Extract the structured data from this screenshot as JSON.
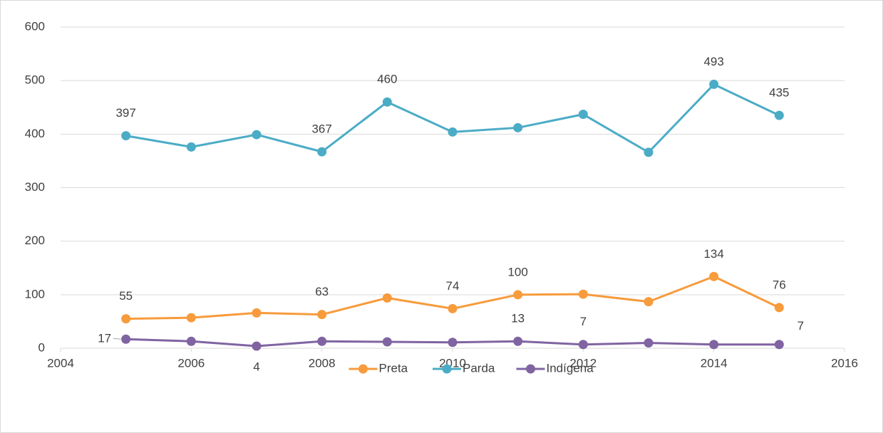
{
  "chart_data": {
    "type": "line",
    "x": [
      2005,
      2006,
      2007,
      2008,
      2009,
      2010,
      2011,
      2012,
      2013,
      2014,
      2015
    ],
    "series": [
      {
        "name": "Preta",
        "color": "#f79b3c",
        "values": [
          55,
          57,
          66,
          63,
          94,
          74,
          100,
          101,
          87,
          134,
          76
        ],
        "value_labels": [
          "55",
          null,
          null,
          "63",
          null,
          "74",
          "100",
          null,
          null,
          "134",
          "76"
        ]
      },
      {
        "name": "Parda",
        "color": "#4bacc6",
        "values": [
          397,
          376,
          399,
          367,
          460,
          404,
          412,
          437,
          366,
          493,
          435
        ],
        "value_labels": [
          "397",
          null,
          null,
          "367",
          "460",
          null,
          null,
          null,
          null,
          "493",
          "435"
        ]
      },
      {
        "name": "Indígena",
        "color": "#8064a2",
        "values": [
          17,
          13,
          4,
          13,
          12,
          11,
          13,
          7,
          10,
          7,
          7
        ],
        "value_labels": [
          "17",
          null,
          "4",
          null,
          null,
          null,
          "13",
          "7",
          null,
          null,
          "7"
        ]
      }
    ],
    "xlim": [
      2004,
      2016
    ],
    "xticks": [
      2004,
      2006,
      2008,
      2010,
      2012,
      2014,
      2016
    ],
    "ylim": [
      0,
      600
    ],
    "yticks": [
      0,
      100,
      200,
      300,
      400,
      500,
      600
    ],
    "grid": true,
    "legend": "bottom"
  }
}
